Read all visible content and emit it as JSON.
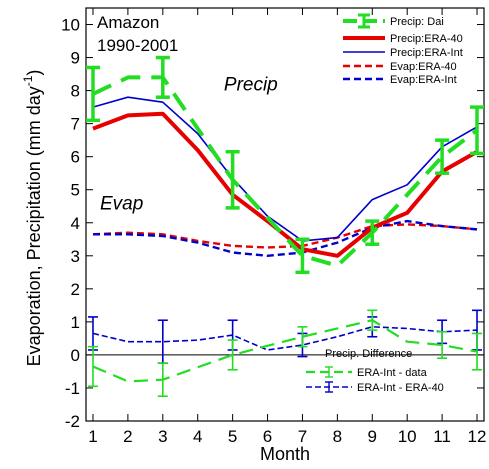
{
  "chart_data": {
    "type": "line",
    "title_lines": [
      "Amazon",
      "1990-2001"
    ],
    "xlabel": "Month",
    "ylabel": "Evaporation, Precipitation (mm day",
    "ylabel_sup": "-1",
    "ylabel_close": ")",
    "xlim": [
      0.8,
      12.2
    ],
    "ylim": [
      -2,
      10.5
    ],
    "xticks": [
      1,
      2,
      3,
      4,
      5,
      6,
      7,
      8,
      9,
      10,
      11,
      12
    ],
    "yticks": [
      -2,
      -1,
      0,
      1,
      2,
      3,
      4,
      5,
      6,
      7,
      8,
      9,
      10
    ],
    "x": [
      1,
      2,
      3,
      4,
      5,
      6,
      7,
      8,
      9,
      10,
      11,
      12
    ],
    "annotations": [
      {
        "text": "Precip",
        "x": 4.75,
        "y": 8.0
      },
      {
        "text": "Evap",
        "x": 1.2,
        "y": 4.4
      }
    ],
    "legend_top": {
      "placement": "top-right",
      "entries": [
        {
          "label": "Precip: Dai",
          "series": "precip_dai"
        },
        {
          "label": "Precip:ERA-40",
          "series": "precip_era40"
        },
        {
          "label": "Precip:ERA-Int",
          "series": "precip_eraint"
        },
        {
          "label": "Evap:ERA-40",
          "series": "evap_era40"
        },
        {
          "label": "Evap:ERA-Int",
          "series": "evap_eraint"
        }
      ]
    },
    "legend_bottom": {
      "placement": "bottom-right",
      "title": "Precip. Difference",
      "entries": [
        {
          "label": "ERA-Int - data",
          "series": "diff_int_data"
        },
        {
          "label": "ERA-Int - ERA-40",
          "series": "diff_int_era40"
        }
      ]
    },
    "series": [
      {
        "id": "precip_dai",
        "name": "Precip: Dai",
        "color": "#22dd22",
        "style": "dashed-thick",
        "values": [
          7.9,
          8.4,
          8.4,
          null,
          5.3,
          null,
          3.0,
          2.7,
          3.7,
          null,
          6.0,
          6.8
        ],
        "errors": [
          0.8,
          null,
          0.6,
          null,
          0.85,
          null,
          0.5,
          null,
          0.35,
          null,
          0.5,
          0.7
        ]
      },
      {
        "id": "precip_era40",
        "name": "Precip:ERA-40",
        "color": "#e60000",
        "style": "solid-thick",
        "values": [
          6.85,
          7.25,
          7.3,
          6.2,
          4.85,
          4.05,
          3.2,
          3.0,
          3.85,
          4.3,
          5.55,
          6.15
        ]
      },
      {
        "id": "precip_eraint",
        "name": "Precip:ERA-Int",
        "color": "#0000cc",
        "style": "solid-thin",
        "values": [
          7.5,
          7.8,
          7.65,
          6.7,
          5.35,
          4.2,
          3.45,
          3.55,
          4.7,
          5.15,
          6.3,
          6.9
        ]
      },
      {
        "id": "evap_era40",
        "name": "Evap:ERA-40",
        "color": "#e60000",
        "style": "dashed",
        "values": [
          3.65,
          3.7,
          3.65,
          3.45,
          3.3,
          3.25,
          3.3,
          3.55,
          3.9,
          3.95,
          3.9,
          3.8
        ]
      },
      {
        "id": "evap_eraint",
        "name": "Evap:ERA-Int",
        "color": "#0000cc",
        "style": "dashed",
        "values": [
          3.65,
          3.65,
          3.6,
          3.4,
          3.1,
          3.0,
          3.1,
          3.4,
          3.85,
          4.05,
          3.9,
          3.8
        ]
      },
      {
        "id": "diff_int_data",
        "name": "ERA-Int - data",
        "color": "#22dd22",
        "style": "dashed-medium",
        "values": [
          -0.35,
          -0.8,
          -0.75,
          null,
          0.0,
          null,
          0.55,
          null,
          1.05,
          0.4,
          0.3,
          0.1
        ],
        "errors": [
          0.6,
          null,
          0.5,
          null,
          0.45,
          null,
          0.3,
          null,
          0.3,
          null,
          0.4,
          0.55
        ]
      },
      {
        "id": "diff_int_era40",
        "name": "ERA-Int - ERA-40",
        "color": "#0000cc",
        "style": "dashed-thin",
        "values": [
          0.65,
          0.4,
          0.4,
          0.45,
          0.6,
          0.15,
          0.3,
          0.55,
          0.85,
          0.8,
          0.7,
          0.75
        ],
        "errors": [
          0.5,
          null,
          0.65,
          null,
          0.45,
          null,
          0.35,
          null,
          0.3,
          null,
          0.35,
          0.6
        ]
      }
    ]
  }
}
